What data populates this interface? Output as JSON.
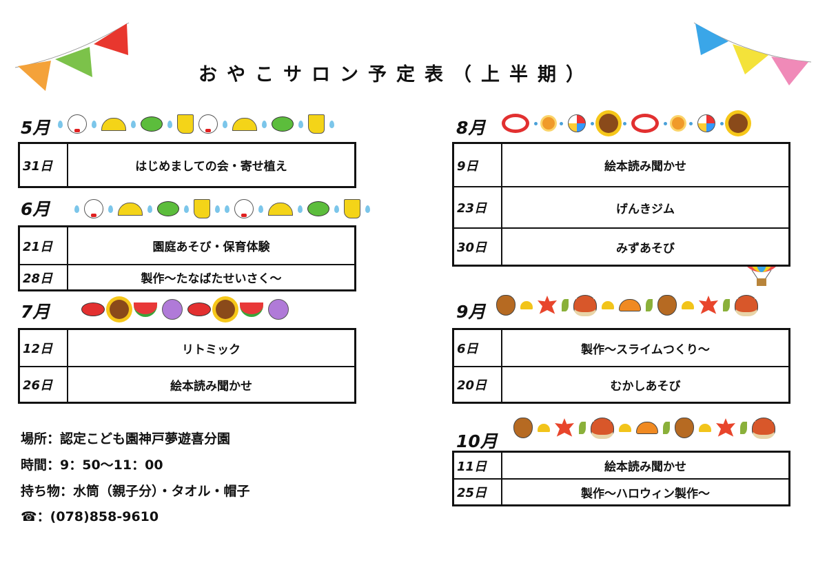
{
  "title": "おやこサロン予定表（上半期）",
  "months": [
    {
      "label": "5月",
      "icons": [
        "drop",
        "doll",
        "drop",
        "umb",
        "drop",
        "frog",
        "drop",
        "boot",
        "doll",
        "drop",
        "umb",
        "drop",
        "frog",
        "drop",
        "boot",
        "drop"
      ],
      "events": [
        {
          "date": "31日",
          "text": "はじめましての会・寄せ植え"
        }
      ]
    },
    {
      "label": "6月",
      "icons": [
        "drop",
        "doll",
        "drop",
        "umb",
        "drop",
        "frog",
        "drop",
        "boot",
        "drop",
        "drop",
        "doll",
        "drop",
        "umb",
        "drop",
        "frog",
        "drop",
        "boot",
        "drop"
      ],
      "events": [
        {
          "date": "21日",
          "text": "園庭あそび・保育体験"
        },
        {
          "date": "28日",
          "text": "製作～たなばたせいさく～"
        }
      ]
    },
    {
      "label": "7月",
      "icons": [
        "crab",
        "sunf",
        "melon",
        "morning",
        "crab",
        "sunf",
        "melon",
        "morning"
      ],
      "events": [
        {
          "date": "12日",
          "text": "リトミック"
        },
        {
          "date": "26日",
          "text": "絵本読み聞かせ"
        }
      ]
    },
    {
      "label": "8月",
      "icons": [
        "ring",
        "dot",
        "sun",
        "dot",
        "ball",
        "dot",
        "sunf",
        "dot",
        "ring",
        "dot",
        "sun",
        "dot",
        "ball",
        "dot",
        "sunf"
      ],
      "events": [
        {
          "date": "9日",
          "text": "絵本読み聞かせ"
        },
        {
          "date": "23日",
          "text": "げんきジム"
        },
        {
          "date": "30日",
          "text": "みずあそび"
        }
      ]
    },
    {
      "label": "9月",
      "icons": [
        "acorn",
        "ginkgo",
        "maple",
        "leaf",
        "chest",
        "ginkgo",
        "mush",
        "leaf",
        "acorn",
        "ginkgo",
        "maple",
        "leaf",
        "chest"
      ],
      "events": [
        {
          "date": "6日",
          "text": "製作～スライムつくり～"
        },
        {
          "date": "20日",
          "text": "むかしあそび"
        }
      ]
    },
    {
      "label": "10月",
      "icons": [
        "acorn",
        "ginkgo",
        "maple",
        "leaf",
        "chest",
        "ginkgo",
        "mush",
        "leaf",
        "acorn",
        "ginkgo",
        "maple",
        "leaf",
        "chest"
      ],
      "events": [
        {
          "date": "11日",
          "text": "絵本読み聞かせ"
        },
        {
          "date": "25日",
          "text": "製作～ハロウィン製作～"
        }
      ]
    }
  ],
  "info": {
    "place": "場所：認定こども園神戸夢遊喜分園",
    "time": "時間：9：50～11：00",
    "items": "持ち物：水筒（親子分）・タオル・帽子",
    "phone": "☎：(078)858-9610"
  },
  "colors": {
    "border": "#111111",
    "bunting": [
      "#f4a23a",
      "#7cc24a",
      "#e8372e",
      "#3aa6e8",
      "#f4e23a",
      "#f08ab8"
    ]
  }
}
